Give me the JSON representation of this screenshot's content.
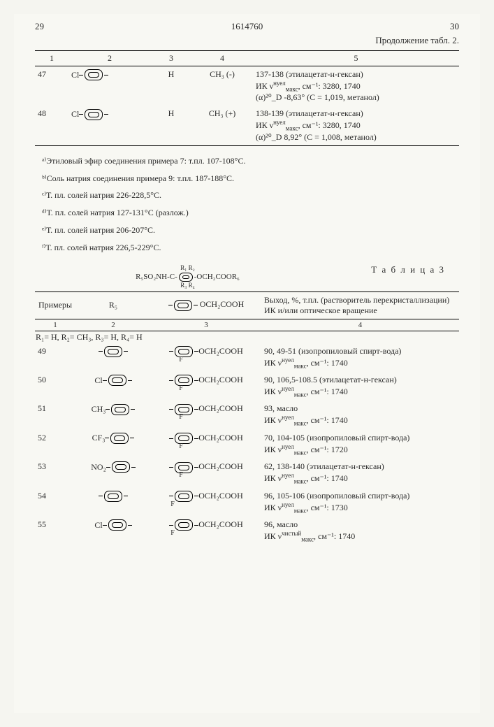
{
  "header": {
    "left_page": "29",
    "doc_number": "1614760",
    "right_page": "30",
    "continuation": "Продолжение табл. 2."
  },
  "table2": {
    "cols": [
      "1",
      "2",
      "3",
      "4",
      "5"
    ],
    "rows": [
      {
        "n": "47",
        "sub_prefix": "Cl",
        "c3": "H",
        "c4": "CH₃ (-)",
        "line1": "137-138 (этилацетат-н-гексан)",
        "line2_pre": "ИК ν",
        "line2_sup": "нуел",
        "line2_sub": "макс",
        "line2_post": ", см⁻¹: 3280, 1740",
        "line3": "(α)²⁰_D -8,63° (C = 1,019, метанол)"
      },
      {
        "n": "48",
        "sub_prefix": "Cl",
        "c3": "H",
        "c4": "CH₃ (+)",
        "line1": "138-139 (этилацетат-н-гексан)",
        "line2_pre": "ИК ν",
        "line2_sup": "нуел",
        "line2_sub": "макс",
        "line2_post": ", см⁻¹: 3280, 1740",
        "line3": "(α)²⁰_D 8,92° (C = 1,008, метанол)"
      }
    ]
  },
  "notes": {
    "a": "ᵃ⁾Этиловый эфир соединения примера 7: т.пл. 107-108°C.",
    "b": "ᵇ⁾Соль натрия соединения примера 9: т.пл. 187-188°C.",
    "c": "ᶜ⁾Т. пл. солей натрия 226-228,5°C.",
    "d": "ᵈ⁾Т. пл. солей натрия 127-131°C (разлож.)",
    "e": "ᵉ⁾Т. пл. солей натрия 206-207°C.",
    "f": "ᶠ⁾Т. пл. солей натрия 226,5-229°C."
  },
  "table3_label": "Т а б л и ц а 3",
  "formula": "R₅SO₂NH-C-⟨A⟩-OCH₂COOR₆",
  "formula_sub": "R₃ R₄",
  "formula_top": "R₁ R₂",
  "table3": {
    "headers": {
      "c1": "Примеры",
      "c2": "R₅",
      "c3_pre": "⟨A⟩",
      "c3_post": "OCH₂COOH",
      "c4": "Выход, %, т.пл. (растворитель перекристаллизации) ИК и/или оптическое вращение"
    },
    "nums": [
      "1",
      "2",
      "3",
      "4"
    ],
    "subgroup": "R₁= H, R₂= CH₃, R₃= H, R₄= H",
    "rows": [
      {
        "n": "49",
        "pfx": "",
        "f_pos": "right",
        "l1": "90, 49-51 (изопропиловый спирт-вода)",
        "sup": "нуел",
        "sub": "макс",
        "l2": ", см⁻¹: 1740"
      },
      {
        "n": "50",
        "pfx": "Cl",
        "f_pos": "right",
        "l1": "90, 106,5-108.5 (этилацетат-н-гексан)",
        "sup": "нуел",
        "sub": "макс",
        "l2": ", см⁻¹: 1740"
      },
      {
        "n": "51",
        "pfx": "CH₃",
        "f_pos": "right",
        "l1": "93, масло",
        "sup": "нуел",
        "sub": "макс",
        "l2": ", см⁻¹: 1740"
      },
      {
        "n": "52",
        "pfx": "CF₃",
        "f_pos": "right",
        "l1": "70, 104-105 (изопропиловый спирт-вода)",
        "sup": "нуел",
        "sub": "макс",
        "l2": ", см⁻¹: 1720"
      },
      {
        "n": "53",
        "pfx": "NO₂",
        "f_pos": "right",
        "l1": "62, 138-140 (этилацетат-н-гексан)",
        "sup": "нуел",
        "sub": "макс",
        "l2": ", см⁻¹: 1740"
      },
      {
        "n": "54",
        "pfx": "",
        "f_pos": "left",
        "l1": "96, 105-106 (изопропиловый спирт-вода)",
        "sup": "нуел",
        "sub": "макс",
        "l2": ", см⁻¹: 1730"
      },
      {
        "n": "55",
        "pfx": "Cl",
        "f_pos": "left",
        "l1": "96, масло",
        "sup": "чистый",
        "sub": "макс",
        "l2": ", см⁻¹: 1740"
      }
    ]
  },
  "och2": "OCH₂COOH",
  "ik": "ИК ν"
}
